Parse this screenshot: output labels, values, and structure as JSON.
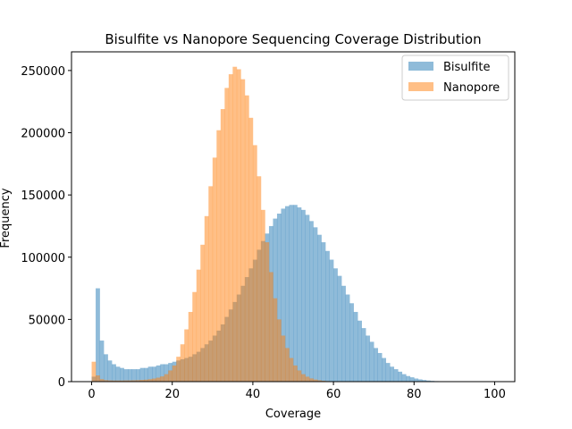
{
  "chart_data": {
    "type": "histogram",
    "title": "Bisulfite vs Nanopore Sequencing Coverage Distribution",
    "xlabel": "Coverage",
    "ylabel": "Frequency",
    "xlim": [
      -5,
      105
    ],
    "ylim": [
      0,
      265000
    ],
    "x_ticks": [
      0,
      20,
      40,
      60,
      80,
      100
    ],
    "y_ticks": [
      0,
      50000,
      100000,
      150000,
      200000,
      250000
    ],
    "legend_position": "top-right",
    "grid": false,
    "series": [
      {
        "name": "Bisulfite",
        "color": "#1f77b4",
        "alpha": 0.5,
        "bin_width": 1,
        "x_start": 0,
        "values": [
          4000,
          75000,
          33000,
          22000,
          17000,
          14000,
          12000,
          11000,
          10000,
          10000,
          10000,
          10000,
          11000,
          11000,
          12000,
          12000,
          13000,
          14000,
          14000,
          15000,
          16000,
          17000,
          18000,
          19000,
          20000,
          22000,
          24000,
          27000,
          30000,
          33000,
          37000,
          41000,
          46000,
          52000,
          58000,
          64000,
          70000,
          77000,
          84000,
          91000,
          98000,
          106000,
          113000,
          119000,
          125000,
          131000,
          135000,
          139000,
          141000,
          142000,
          142000,
          140000,
          138000,
          134000,
          129000,
          124000,
          118000,
          112000,
          105000,
          98000,
          91000,
          85000,
          77000,
          70000,
          63000,
          56000,
          49000,
          43000,
          37000,
          32000,
          27000,
          23000,
          19000,
          15000,
          12000,
          10000,
          8000,
          6000,
          4500,
          3500,
          2500,
          1800,
          1300,
          900,
          600,
          400,
          300,
          200,
          130,
          80,
          50,
          30,
          20,
          10,
          0,
          0,
          0,
          0,
          0,
          0
        ]
      },
      {
        "name": "Nanopore",
        "color": "#ff7f0e",
        "alpha": 0.5,
        "bin_width": 1,
        "x_start": 0,
        "values": [
          16000,
          5000,
          2000,
          1200,
          1000,
          900,
          900,
          900,
          1000,
          1000,
          1100,
          1200,
          1400,
          1600,
          2000,
          2500,
          3200,
          4200,
          6000,
          9000,
          13000,
          20000,
          30000,
          42000,
          56000,
          72000,
          90000,
          110000,
          133000,
          157000,
          180000,
          202000,
          219000,
          236000,
          247000,
          253000,
          251000,
          243000,
          230000,
          212000,
          190000,
          165000,
          138000,
          112000,
          88000,
          67000,
          50000,
          37000,
          27000,
          19000,
          13000,
          9000,
          6000,
          4000,
          2600,
          1700,
          1100,
          700,
          450,
          300,
          200,
          130,
          80,
          50,
          30,
          20,
          10,
          5,
          0,
          0,
          0,
          0,
          0,
          0,
          0,
          0,
          0,
          0,
          0,
          0,
          0,
          0,
          0,
          0,
          0,
          0,
          0,
          0,
          0,
          0,
          0,
          0,
          0,
          0,
          0,
          0,
          0,
          0,
          0,
          0,
          0
        ]
      }
    ]
  }
}
